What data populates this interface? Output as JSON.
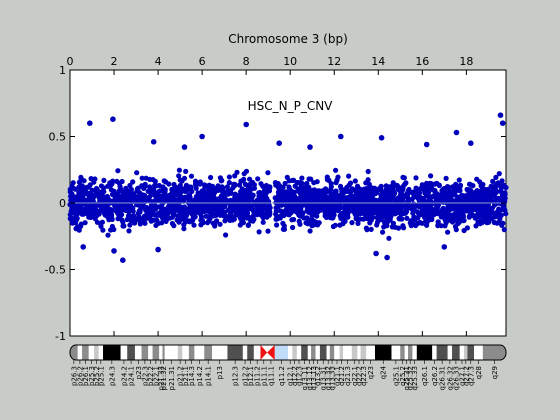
{
  "chart_data": {
    "type": "scatter",
    "title": "Chromosome 3 (bp)",
    "annotation": "HSC_N_P_CNV",
    "xlabel": "Chromosome 3 (bp)",
    "ylabel": "",
    "xlim": [
      0,
      19.8
    ],
    "ylim": [
      -1,
      1
    ],
    "x_ticks": [
      0,
      2,
      4,
      6,
      8,
      10,
      12,
      14,
      16,
      18
    ],
    "y_ticks": [
      -1,
      -0.5,
      0,
      0.5,
      1
    ],
    "x_tick_labels": [
      "0",
      "2",
      "4",
      "6",
      "8",
      "10",
      "12",
      "14",
      "16",
      "18"
    ],
    "y_tick_labels": [
      "-1",
      "-0.5",
      "0",
      "0.5",
      "1"
    ],
    "grid": false,
    "legend": "none",
    "zero_line": 0,
    "marker_color": "#0000bb",
    "zero_line_color": "#8aa0c8",
    "band_gap": [
      9.1,
      9.3
    ],
    "series": [
      {
        "outliers": [
          {
            "x": 0.9,
            "y": 0.6
          },
          {
            "x": 1.95,
            "y": 0.63
          },
          {
            "x": 8.0,
            "y": 0.59
          },
          {
            "x": 19.55,
            "y": 0.66
          },
          {
            "x": 19.65,
            "y": 0.6
          },
          {
            "x": 6.0,
            "y": 0.5
          },
          {
            "x": 12.3,
            "y": 0.5
          },
          {
            "x": 17.55,
            "y": 0.53
          },
          {
            "x": 14.15,
            "y": 0.49
          },
          {
            "x": 3.8,
            "y": 0.46
          },
          {
            "x": 2.4,
            "y": -0.43
          },
          {
            "x": 14.4,
            "y": -0.41
          },
          {
            "x": 13.9,
            "y": -0.38
          },
          {
            "x": 2.0,
            "y": -0.36
          },
          {
            "x": 0.6,
            "y": -0.33
          },
          {
            "x": 4.0,
            "y": -0.35
          },
          {
            "x": 17.0,
            "y": -0.33
          },
          {
            "x": 9.5,
            "y": 0.45
          },
          {
            "x": 10.9,
            "y": 0.42
          },
          {
            "x": 16.2,
            "y": 0.44
          },
          {
            "x": 5.2,
            "y": 0.42
          },
          {
            "x": 18.2,
            "y": 0.45
          }
        ]
      }
    ]
  },
  "ideogram": {
    "bands": [
      {
        "label": "p26.3",
        "start": 0.0,
        "end": 0.35,
        "stain": "gpos50"
      },
      {
        "label": "p26.2",
        "start": 0.35,
        "end": 0.55,
        "stain": "gneg"
      },
      {
        "label": "p26.1",
        "start": 0.55,
        "end": 0.85,
        "stain": "gpos50"
      },
      {
        "label": "p25.3",
        "start": 0.85,
        "end": 1.1,
        "stain": "gneg"
      },
      {
        "label": "p25.2",
        "start": 1.1,
        "end": 1.3,
        "stain": "gpos25"
      },
      {
        "label": "p25.1",
        "start": 1.3,
        "end": 1.5,
        "stain": "gneg"
      },
      {
        "label": "p24.3",
        "start": 1.5,
        "end": 2.3,
        "stain": "gpos100"
      },
      {
        "label": "p24.2",
        "start": 2.3,
        "end": 2.6,
        "stain": "gneg"
      },
      {
        "label": "p24.1",
        "start": 2.6,
        "end": 2.95,
        "stain": "gpos75"
      },
      {
        "label": "p23",
        "start": 2.95,
        "end": 3.25,
        "stain": "gneg"
      },
      {
        "label": "p22.3",
        "start": 3.25,
        "end": 3.55,
        "stain": "gpos50"
      },
      {
        "label": "p22.2",
        "start": 3.55,
        "end": 3.75,
        "stain": "gneg"
      },
      {
        "label": "p22.1",
        "start": 3.75,
        "end": 4.05,
        "stain": "gpos50"
      },
      {
        "label": "p21.33",
        "start": 4.05,
        "end": 4.2,
        "stain": "gneg"
      },
      {
        "label": "p21.32",
        "start": 4.2,
        "end": 4.3,
        "stain": "gpos50"
      },
      {
        "label": "p21.31",
        "start": 4.3,
        "end": 4.9,
        "stain": "gneg"
      },
      {
        "label": "p21.2",
        "start": 4.9,
        "end": 5.1,
        "stain": "gpos25"
      },
      {
        "label": "p21.1",
        "start": 5.1,
        "end": 5.4,
        "stain": "gneg"
      },
      {
        "label": "p14.3",
        "start": 5.4,
        "end": 5.65,
        "stain": "gpos50"
      },
      {
        "label": "p14.2",
        "start": 5.65,
        "end": 6.1,
        "stain": "gneg"
      },
      {
        "label": "p14.1",
        "start": 6.1,
        "end": 6.45,
        "stain": "gpos50"
      },
      {
        "label": "p13",
        "start": 6.45,
        "end": 7.15,
        "stain": "gneg"
      },
      {
        "label": "p12.3",
        "start": 7.15,
        "end": 7.85,
        "stain": "gpos75"
      },
      {
        "label": "p12.2",
        "start": 7.85,
        "end": 8.05,
        "stain": "gneg"
      },
      {
        "label": "p12.1",
        "start": 8.05,
        "end": 8.35,
        "stain": "gpos75"
      },
      {
        "label": "p11.2",
        "start": 8.35,
        "end": 8.65,
        "stain": "gneg"
      },
      {
        "label": "p11.1",
        "start": 8.65,
        "end": 8.95,
        "stain": "acen"
      },
      {
        "label": "q11.1",
        "start": 8.95,
        "end": 9.3,
        "stain": "acen"
      },
      {
        "label": "q11.2",
        "start": 9.3,
        "end": 9.9,
        "stain": "gvar"
      },
      {
        "label": "q12.1",
        "start": 9.9,
        "end": 10.1,
        "stain": "gneg"
      },
      {
        "label": "q12.2",
        "start": 10.1,
        "end": 10.3,
        "stain": "gpos25"
      },
      {
        "label": "q12.3",
        "start": 10.3,
        "end": 10.5,
        "stain": "gneg"
      },
      {
        "label": "q13.11",
        "start": 10.5,
        "end": 10.8,
        "stain": "gpos75"
      },
      {
        "label": "q13.12",
        "start": 10.8,
        "end": 10.95,
        "stain": "gneg"
      },
      {
        "label": "q13.13",
        "start": 10.95,
        "end": 11.15,
        "stain": "gpos50"
      },
      {
        "label": "q13.2",
        "start": 11.15,
        "end": 11.35,
        "stain": "gneg"
      },
      {
        "label": "q13.31",
        "start": 11.35,
        "end": 11.65,
        "stain": "gpos75"
      },
      {
        "label": "q13.32",
        "start": 11.65,
        "end": 11.8,
        "stain": "gneg"
      },
      {
        "label": "q13.33",
        "start": 11.8,
        "end": 12.0,
        "stain": "gpos50"
      },
      {
        "label": "q21.1",
        "start": 12.0,
        "end": 12.25,
        "stain": "gneg"
      },
      {
        "label": "q21.2",
        "start": 12.25,
        "end": 12.4,
        "stain": "gpos25"
      },
      {
        "label": "q21.3",
        "start": 12.4,
        "end": 12.8,
        "stain": "gneg"
      },
      {
        "label": "q22.1",
        "start": 12.8,
        "end": 13.05,
        "stain": "gpos25"
      },
      {
        "label": "q22.2",
        "start": 13.05,
        "end": 13.2,
        "stain": "gneg"
      },
      {
        "label": "q22.3",
        "start": 13.2,
        "end": 13.45,
        "stain": "gpos25"
      },
      {
        "label": "q23",
        "start": 13.45,
        "end": 13.85,
        "stain": "gneg"
      },
      {
        "label": "q24",
        "start": 13.85,
        "end": 14.6,
        "stain": "gpos100"
      },
      {
        "label": "q25.1",
        "start": 14.6,
        "end": 15.0,
        "stain": "gneg"
      },
      {
        "label": "q25.2",
        "start": 15.0,
        "end": 15.2,
        "stain": "gpos50"
      },
      {
        "label": "q25.31",
        "start": 15.2,
        "end": 15.35,
        "stain": "gneg"
      },
      {
        "label": "q25.32",
        "start": 15.35,
        "end": 15.55,
        "stain": "gpos50"
      },
      {
        "label": "q25.33",
        "start": 15.55,
        "end": 15.75,
        "stain": "gneg"
      },
      {
        "label": "q26.1",
        "start": 15.75,
        "end": 16.45,
        "stain": "gpos100"
      },
      {
        "label": "q26.2",
        "start": 16.45,
        "end": 16.65,
        "stain": "gneg"
      },
      {
        "label": "q26.31",
        "start": 16.65,
        "end": 17.15,
        "stain": "gpos75"
      },
      {
        "label": "q26.32",
        "start": 17.15,
        "end": 17.35,
        "stain": "gneg"
      },
      {
        "label": "q26.33",
        "start": 17.35,
        "end": 17.7,
        "stain": "gpos75"
      },
      {
        "label": "q27.1",
        "start": 17.7,
        "end": 17.9,
        "stain": "gneg"
      },
      {
        "label": "q27.2",
        "start": 17.9,
        "end": 18.05,
        "stain": "gpos25"
      },
      {
        "label": "q27.3",
        "start": 18.05,
        "end": 18.35,
        "stain": "gpos75"
      },
      {
        "label": "q28",
        "start": 18.35,
        "end": 18.75,
        "stain": "gneg"
      },
      {
        "label": "q29",
        "start": 18.75,
        "end": 19.8,
        "stain": "gpos50"
      }
    ],
    "stain_colors": {
      "gneg": "#ffffff",
      "gpos25": "#c8c8c8",
      "gpos50": "#8c8c8c",
      "gpos75": "#505050",
      "gpos100": "#000000",
      "acen": "#ee1111",
      "gvar": "#c0dcf8"
    }
  }
}
